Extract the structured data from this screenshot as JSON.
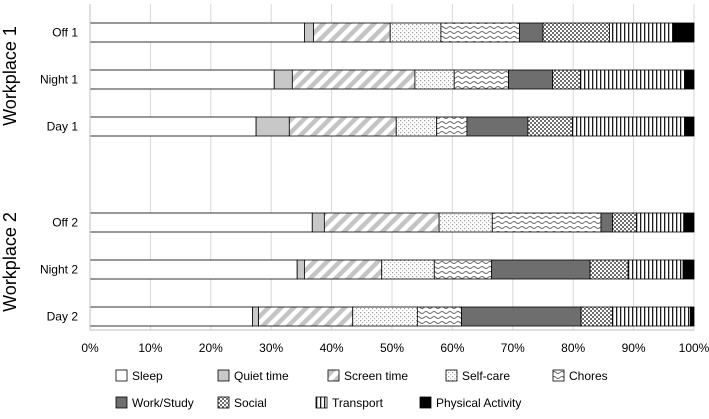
{
  "chart_data": {
    "type": "bar",
    "orientation": "horizontal",
    "stacked": true,
    "percent_scale": true,
    "xlim": [
      0,
      100
    ],
    "x_ticks": [
      "0%",
      "10%",
      "20%",
      "30%",
      "40%",
      "50%",
      "60%",
      "70%",
      "80%",
      "90%",
      "100%"
    ],
    "groups": [
      {
        "label": "Workplace 1",
        "categories": [
          "Off 1",
          "Night 1",
          "Day 1"
        ]
      },
      {
        "label": "Workplace 2",
        "categories": [
          "Off 2",
          "Night 2",
          "Day 2"
        ]
      }
    ],
    "categories": [
      "Off 1",
      "Night 1",
      "Day 1",
      "Off 2",
      "Night 2",
      "Day 2"
    ],
    "legend": {
      "position": "bottom"
    },
    "series": [
      {
        "name": "Sleep",
        "pattern": "white",
        "values": [
          35.5,
          30.5,
          27.5,
          36.8,
          34.3,
          26.9
        ]
      },
      {
        "name": "Quiet time",
        "pattern": "light-gray",
        "values": [
          1.5,
          3.0,
          5.5,
          2.0,
          1.2,
          1.0
        ]
      },
      {
        "name": "Screen time",
        "pattern": "wide-diagonal",
        "values": [
          12.7,
          20.3,
          17.7,
          19.0,
          12.8,
          15.6
        ]
      },
      {
        "name": "Self-care",
        "pattern": "fine-dots",
        "values": [
          8.4,
          6.5,
          6.7,
          8.8,
          8.7,
          10.7
        ]
      },
      {
        "name": "Chores",
        "pattern": "wave",
        "values": [
          13.0,
          9.0,
          5.0,
          18.0,
          9.5,
          7.3
        ]
      },
      {
        "name": "Work/Study",
        "pattern": "dark-gray",
        "values": [
          3.9,
          7.3,
          10.1,
          1.9,
          16.3,
          19.8
        ]
      },
      {
        "name": "Social",
        "pattern": "checker",
        "values": [
          11.0,
          4.6,
          7.4,
          4.0,
          6.3,
          5.2
        ]
      },
      {
        "name": "Transport",
        "pattern": "vertical-lines",
        "values": [
          10.6,
          17.3,
          18.6,
          7.8,
          9.1,
          12.9
        ]
      },
      {
        "name": "Physical Activity",
        "pattern": "black",
        "values": [
          3.4,
          1.5,
          1.5,
          1.7,
          1.8,
          0.6
        ]
      }
    ]
  }
}
